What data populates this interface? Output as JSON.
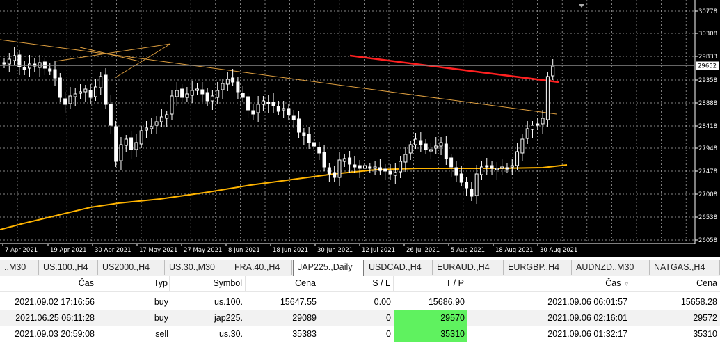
{
  "chart": {
    "symbol_tab": "JAP225.,Daily",
    "price_labels": [
      "30778",
      "30308",
      "29833",
      "29358",
      "28888",
      "28418",
      "27948",
      "27478",
      "27008",
      "26538",
      "26058"
    ],
    "current_price": "29652",
    "date_labels": [
      "7 Apr 2021",
      "19 Apr 2021",
      "30 Apr 2021",
      "17 May 2021",
      "27 May 2021",
      "8 Jun 2021",
      "18 Jun 2021",
      "30 Jun 2021",
      "12 Jul 2021",
      "26 Jul 2021",
      "5 Aug 2021",
      "18 Aug 2021",
      "30 Aug 2021"
    ],
    "colors": {
      "background": "#000000",
      "grid": "#b4b4b4",
      "candle": "#ffffff",
      "ma": "#ffb400",
      "trend": "#e0a040",
      "red_line": "#ff2020"
    }
  },
  "tabs": [
    {
      "label": ".,M30"
    },
    {
      "label": "US.100.,H4"
    },
    {
      "label": "US2000.,H4"
    },
    {
      "label": "US.30.,M30"
    },
    {
      "label": "FRA.40.,H4"
    },
    {
      "label": "JAP225.,Daily",
      "active": true
    },
    {
      "label": "USDCAD.,H4"
    },
    {
      "label": "EURAUD.,H4"
    },
    {
      "label": "EURGBP.,H4"
    },
    {
      "label": "AUDNZD.,M30"
    },
    {
      "label": "NATGAS.,H4"
    }
  ],
  "trades": {
    "headers": {
      "open_time": "Čas",
      "type": "Typ",
      "symbol": "Symbol",
      "price": "Cena",
      "sl": "S / L",
      "tp": "T / P",
      "time": "Čas",
      "cur_price": "Cena"
    },
    "rows": [
      {
        "open_time": "2021.09.02 17:16:56",
        "type": "buy",
        "symbol": "us.100.",
        "price": "15647.55",
        "sl": "0.00",
        "tp": "15686.90",
        "tp_hit": false,
        "time": "2021.09.06 06:01:57",
        "cur_price": "15658.28"
      },
      {
        "open_time": "2021.06.25 06:11:28",
        "type": "buy",
        "symbol": "jap225.",
        "price": "29089",
        "sl": "0",
        "tp": "29570",
        "tp_hit": true,
        "time": "2021.09.06 02:16:01",
        "cur_price": "29572"
      },
      {
        "open_time": "2021.09.03 20:59:08",
        "type": "sell",
        "symbol": "us.30.",
        "price": "35383",
        "sl": "0",
        "tp": "35310",
        "tp_hit": true,
        "time": "2021.09.06 01:32:17",
        "cur_price": "35310"
      }
    ]
  }
}
